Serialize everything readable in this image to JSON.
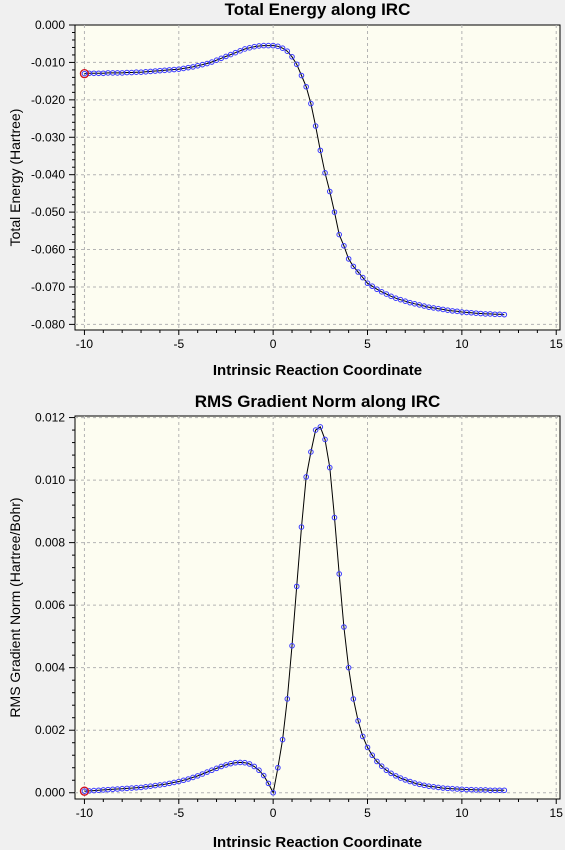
{
  "colors": {
    "background": "#f0f0f0",
    "plot_bg": "#fdfdf1",
    "grid": "#b4b4b4",
    "line": "#000000",
    "marker": "#3a3aff",
    "start_marker": "#d01020"
  },
  "chart_data": [
    {
      "type": "line",
      "title": "Total Energy along IRC",
      "xlabel": "Intrinsic Reaction Coordinate",
      "ylabel": "Total Energy (Hartree)",
      "xlim": [
        -10.5,
        15.2
      ],
      "ylim": [
        -0.0815,
        0.0
      ],
      "xticks": [
        -10,
        -5,
        0,
        5,
        10,
        15
      ],
      "xtick_labels": [
        "-10",
        "-5",
        "0",
        "5",
        "10",
        "15"
      ],
      "yticks": [
        0.0,
        -0.01,
        -0.02,
        -0.03,
        -0.04,
        -0.05,
        -0.06,
        -0.07,
        -0.08
      ],
      "ytick_labels": [
        "0.000",
        "-0.010",
        "-0.020",
        "-0.030",
        "-0.040",
        "-0.050",
        "-0.060",
        "-0.070",
        "-0.080"
      ],
      "grid": true,
      "series": [
        {
          "x": [
            -10.0,
            -9.75,
            -9.5,
            -9.25,
            -9.0,
            -8.75,
            -8.5,
            -8.25,
            -8.0,
            -7.75,
            -7.5,
            -7.25,
            -7.0,
            -6.75,
            -6.5,
            -6.25,
            -6.0,
            -5.75,
            -5.5,
            -5.25,
            -5.0,
            -4.75,
            -4.5,
            -4.25,
            -4.0,
            -3.75,
            -3.5,
            -3.25,
            -3.0,
            -2.75,
            -2.5,
            -2.25,
            -2.0,
            -1.75,
            -1.5,
            -1.25,
            -1.0,
            -0.75,
            -0.5,
            -0.25,
            0.0,
            0.25,
            0.5,
            0.75,
            1.0,
            1.25,
            1.5,
            1.75,
            2.0,
            2.25,
            2.5,
            2.75,
            3.0,
            3.25,
            3.5,
            3.75,
            4.0,
            4.25,
            4.5,
            4.75,
            5.0,
            5.25,
            5.5,
            5.75,
            6.0,
            6.25,
            6.5,
            6.75,
            7.0,
            7.25,
            7.5,
            7.75,
            8.0,
            8.25,
            8.5,
            8.75,
            9.0,
            9.25,
            9.5,
            9.75,
            10.0,
            10.25,
            10.5,
            10.75,
            11.0,
            11.25,
            11.5,
            11.75,
            12.0,
            12.25
          ],
          "y": [
            -0.013,
            -0.0129,
            -0.0129,
            -0.0129,
            -0.0129,
            -0.0128,
            -0.0128,
            -0.0128,
            -0.0128,
            -0.0127,
            -0.0127,
            -0.0126,
            -0.0126,
            -0.0125,
            -0.0124,
            -0.0123,
            -0.0122,
            -0.0121,
            -0.012,
            -0.0119,
            -0.0118,
            -0.0116,
            -0.0114,
            -0.0112,
            -0.0109,
            -0.0106,
            -0.0103,
            -0.0099,
            -0.0094,
            -0.0089,
            -0.0084,
            -0.0079,
            -0.0074,
            -0.0069,
            -0.0064,
            -0.0061,
            -0.0058,
            -0.0056,
            -0.0055,
            -0.0055,
            -0.0055,
            -0.0057,
            -0.0062,
            -0.007,
            -0.0085,
            -0.0105,
            -0.0135,
            -0.0165,
            -0.021,
            -0.027,
            -0.0335,
            -0.0395,
            -0.0445,
            -0.05,
            -0.056,
            -0.059,
            -0.0625,
            -0.0645,
            -0.066,
            -0.0675,
            -0.069,
            -0.0698,
            -0.0706,
            -0.0713,
            -0.0719,
            -0.0725,
            -0.073,
            -0.0734,
            -0.0738,
            -0.0742,
            -0.0745,
            -0.0748,
            -0.0751,
            -0.0754,
            -0.0756,
            -0.0758,
            -0.076,
            -0.0762,
            -0.0764,
            -0.0765,
            -0.0767,
            -0.0768,
            -0.0769,
            -0.077,
            -0.0771,
            -0.0772,
            -0.0772,
            -0.0773,
            -0.0773,
            -0.0774
          ]
        }
      ]
    },
    {
      "type": "line",
      "title": "RMS Gradient Norm along IRC",
      "xlabel": "Intrinsic Reaction Coordinate",
      "ylabel": "RMS Gradient Norm (Hartree/Bohr)",
      "xlim": [
        -10.5,
        15.2
      ],
      "ylim": [
        -0.0002,
        0.01205
      ],
      "xticks": [
        -10,
        -5,
        0,
        5,
        10,
        15
      ],
      "xtick_labels": [
        "-10",
        "-5",
        "0",
        "5",
        "10",
        "15"
      ],
      "yticks": [
        0.0,
        0.002,
        0.004,
        0.006,
        0.008,
        0.01,
        0.012
      ],
      "ytick_labels": [
        "0.000",
        "0.002",
        "0.004",
        "0.006",
        "0.008",
        "0.010",
        "0.012"
      ],
      "grid": true,
      "series": [
        {
          "x": [
            -10.0,
            -9.75,
            -9.5,
            -9.25,
            -9.0,
            -8.75,
            -8.5,
            -8.25,
            -8.0,
            -7.75,
            -7.5,
            -7.25,
            -7.0,
            -6.75,
            -6.5,
            -6.25,
            -6.0,
            -5.75,
            -5.5,
            -5.25,
            -5.0,
            -4.75,
            -4.5,
            -4.25,
            -4.0,
            -3.75,
            -3.5,
            -3.25,
            -3.0,
            -2.75,
            -2.5,
            -2.25,
            -2.0,
            -1.75,
            -1.5,
            -1.25,
            -1.0,
            -0.75,
            -0.5,
            -0.25,
            0.0,
            0.25,
            0.5,
            0.75,
            1.0,
            1.25,
            1.5,
            1.75,
            2.0,
            2.25,
            2.5,
            2.75,
            3.0,
            3.25,
            3.5,
            3.75,
            4.0,
            4.25,
            4.5,
            4.75,
            5.0,
            5.25,
            5.5,
            5.75,
            6.0,
            6.25,
            6.5,
            6.75,
            7.0,
            7.25,
            7.5,
            7.75,
            8.0,
            8.25,
            8.5,
            8.75,
            9.0,
            9.25,
            9.5,
            9.75,
            10.0,
            10.25,
            10.5,
            10.75,
            11.0,
            11.25,
            11.5,
            11.75,
            12.0,
            12.25
          ],
          "y": [
            5e-05,
            6e-05,
            7e-05,
            8e-05,
            9e-05,
            0.0001,
            0.00011,
            0.00012,
            0.00013,
            0.00014,
            0.00015,
            0.00016,
            0.00017,
            0.00019,
            0.00021,
            0.00023,
            0.00025,
            0.00027,
            0.0003,
            0.00033,
            0.00036,
            0.0004,
            0.00044,
            0.00049,
            0.00054,
            0.0006,
            0.00066,
            0.00072,
            0.00078,
            0.00084,
            0.00089,
            0.00093,
            0.00096,
            0.00097,
            0.00096,
            0.00092,
            0.00084,
            0.00072,
            0.00055,
            0.0003,
            0.0,
            0.0008,
            0.0017,
            0.003,
            0.0047,
            0.0066,
            0.0085,
            0.0101,
            0.0109,
            0.0116,
            0.0117,
            0.0113,
            0.0104,
            0.0088,
            0.007,
            0.0053,
            0.004,
            0.003,
            0.0023,
            0.0018,
            0.00145,
            0.0012,
            0.001,
            0.00085,
            0.00072,
            0.00062,
            0.00054,
            0.00047,
            0.00041,
            0.00036,
            0.00031,
            0.00027,
            0.00024,
            0.00021,
            0.00019,
            0.00017,
            0.00015,
            0.00014,
            0.00013,
            0.00012,
            0.00011,
            0.0001,
            0.0001,
            9e-05,
            9e-05,
            9e-05,
            8e-05,
            8e-05,
            8e-05,
            8e-05
          ]
        }
      ]
    }
  ]
}
